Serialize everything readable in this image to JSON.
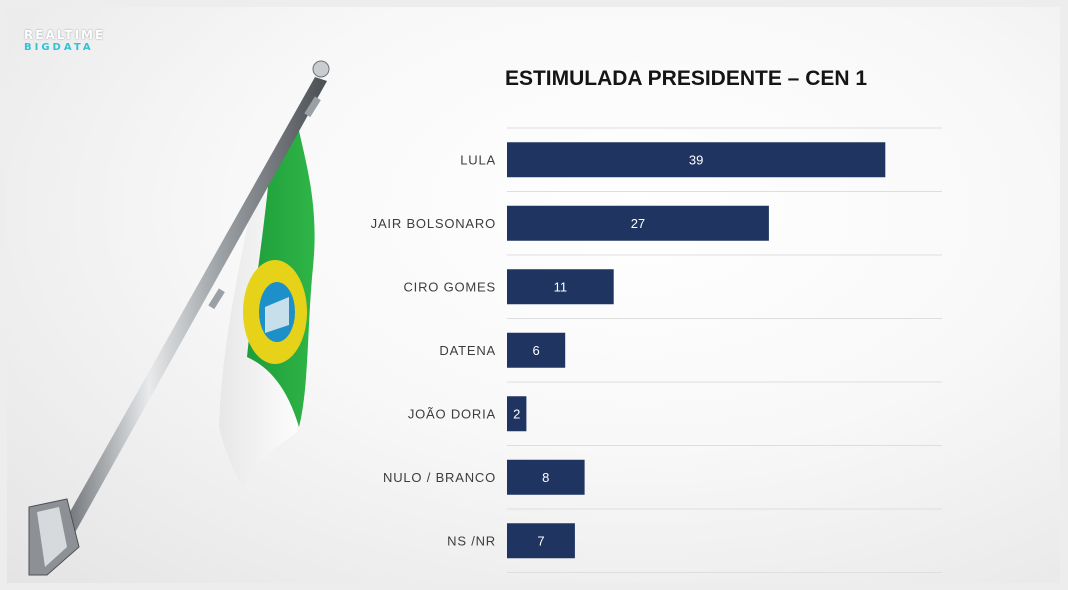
{
  "logo": {
    "line1": "REALTIME",
    "line2": "BIGDATA"
  },
  "colors": {
    "bar": "#1f3461",
    "bar_label": "#ffffff",
    "category_label": "#3d3d3d",
    "grid": "#dedede"
  },
  "chart_data": {
    "type": "bar",
    "orientation": "horizontal",
    "title": "ESTIMULADA PRESIDENTE – CEN 1",
    "categories": [
      "LULA",
      "JAIR BOLSONARO",
      "CIRO GOMES",
      "DATENA",
      "JOÃO DORIA",
      "NULO / BRANCO",
      "NS /NR"
    ],
    "values": [
      39,
      27,
      11,
      6,
      2,
      8,
      7
    ],
    "xlim": [
      0,
      45
    ],
    "xlabel": "",
    "ylabel": "",
    "grid": true,
    "data_labels": true
  }
}
